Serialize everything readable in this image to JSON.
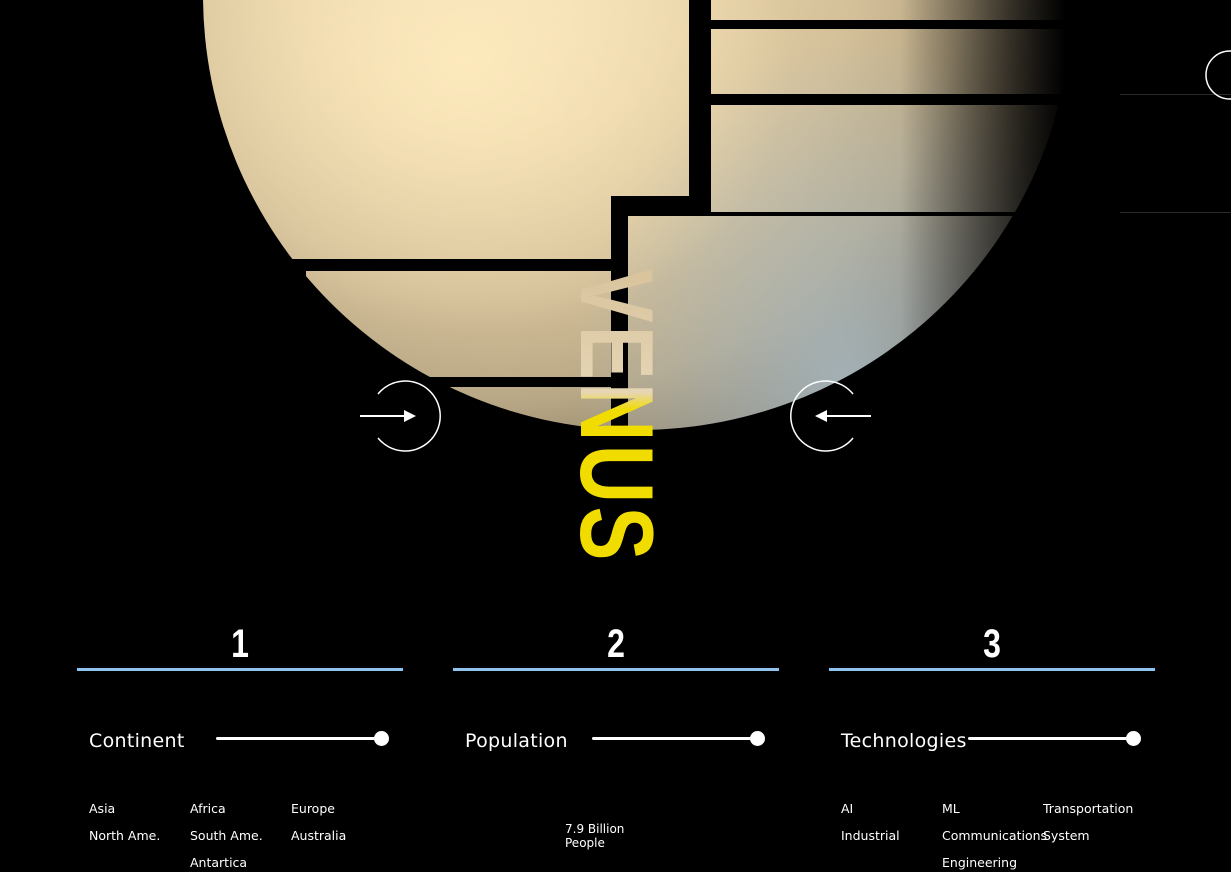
{
  "planet": {
    "name": "VENUS",
    "accent_color": "#f1dc00",
    "prev_icon": "arrow-right-circle-icon",
    "next_icon": "arrow-left-circle-icon"
  },
  "stats": {
    "rule_color": "#8fc3ee",
    "columns": [
      {
        "number": "1",
        "label": "Continent",
        "slider_value": 1.0,
        "tags": [
          "Asia",
          "Africa",
          "Europe",
          "North Ame.",
          "South Ame.",
          "Australia",
          "",
          "Antartica",
          ""
        ]
      },
      {
        "number": "2",
        "label": "Population",
        "slider_value": 1.0,
        "value_line1": "7.9 Billion",
        "value_line2": "People"
      },
      {
        "number": "3",
        "label": "Technologies",
        "slider_value": 1.0,
        "tags": [
          "AI",
          "ML",
          "Transportation",
          "Industrial",
          "Communications",
          "System",
          "",
          "Engineering",
          ""
        ]
      }
    ]
  }
}
